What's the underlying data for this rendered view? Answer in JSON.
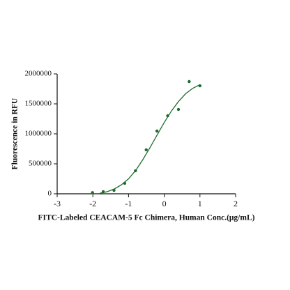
{
  "chart_data": {
    "type": "scatter",
    "x_label": "FITC-Labeled CEACAM-5 Fc Chimera, Human Conc.(μg/mL)",
    "y_label": "Fluorescence in RFU",
    "color": "#1f6b2e",
    "x": [
      -2.01,
      -1.709,
      -1.408,
      -1.107,
      -0.806,
      -0.505,
      -0.204,
      0.097,
      0.398,
      0.699,
      1.0
    ],
    "values": [
      20000,
      35000,
      58000,
      175000,
      384000,
      733000,
      1047000,
      1302000,
      1407000,
      1872000,
      1802000
    ],
    "fit": {
      "x": [
        -1.8,
        -1.6,
        -1.4,
        -1.2,
        -1.0,
        -0.8,
        -0.6,
        -0.4,
        -0.2,
        0.0,
        0.2,
        0.4,
        0.6,
        0.8,
        1.0
      ],
      "values": [
        10000,
        35000,
        80000,
        150000,
        250000,
        390000,
        570000,
        770000,
        980000,
        1190000,
        1380000,
        1540000,
        1670000,
        1760000,
        1820000
      ]
    },
    "xlim": [
      -3,
      2
    ],
    "xticks": [
      -3,
      -2,
      -1,
      0,
      1,
      2
    ],
    "ylim": [
      0,
      2000000
    ],
    "yticks": [
      0,
      500000,
      1000000,
      1500000,
      2000000
    ]
  }
}
